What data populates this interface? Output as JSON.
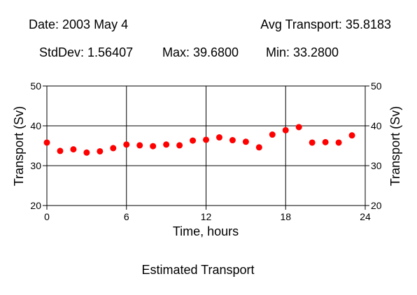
{
  "header": {
    "date_text": "Date: 2003 May 4",
    "avg_text": "Avg Transport: 35.8183",
    "stddev_text": "StdDev: 1.56407",
    "max_text": "Max: 39.6800",
    "min_text": "Min: 33.2800"
  },
  "footer": {
    "caption": "Estimated Transport"
  },
  "chart_data": {
    "type": "scatter",
    "title": "",
    "xlabel": "Time, hours",
    "ylabel": "Transport (Sv)",
    "ylabel_right": "Transport (Sv)",
    "xlim": [
      0,
      24
    ],
    "ylim": [
      20,
      50
    ],
    "x_ticks": [
      0,
      6,
      12,
      18,
      24
    ],
    "y_ticks": [
      20,
      30,
      40,
      50
    ],
    "grid": true,
    "marker_color": "#ff0000",
    "series": [
      {
        "x": [
          0,
          1,
          2,
          3,
          4,
          5,
          6,
          7,
          8,
          9,
          10,
          11,
          12,
          13,
          14,
          15,
          16,
          17,
          18,
          19,
          20,
          21,
          22,
          23
        ],
        "values": [
          35.8,
          33.7,
          34.1,
          33.28,
          33.6,
          34.4,
          35.3,
          35.1,
          34.9,
          35.3,
          35.1,
          36.3,
          36.5,
          37.1,
          36.4,
          36.0,
          34.6,
          37.8,
          38.9,
          39.68,
          35.8,
          35.9,
          35.8,
          37.6
        ]
      }
    ]
  }
}
